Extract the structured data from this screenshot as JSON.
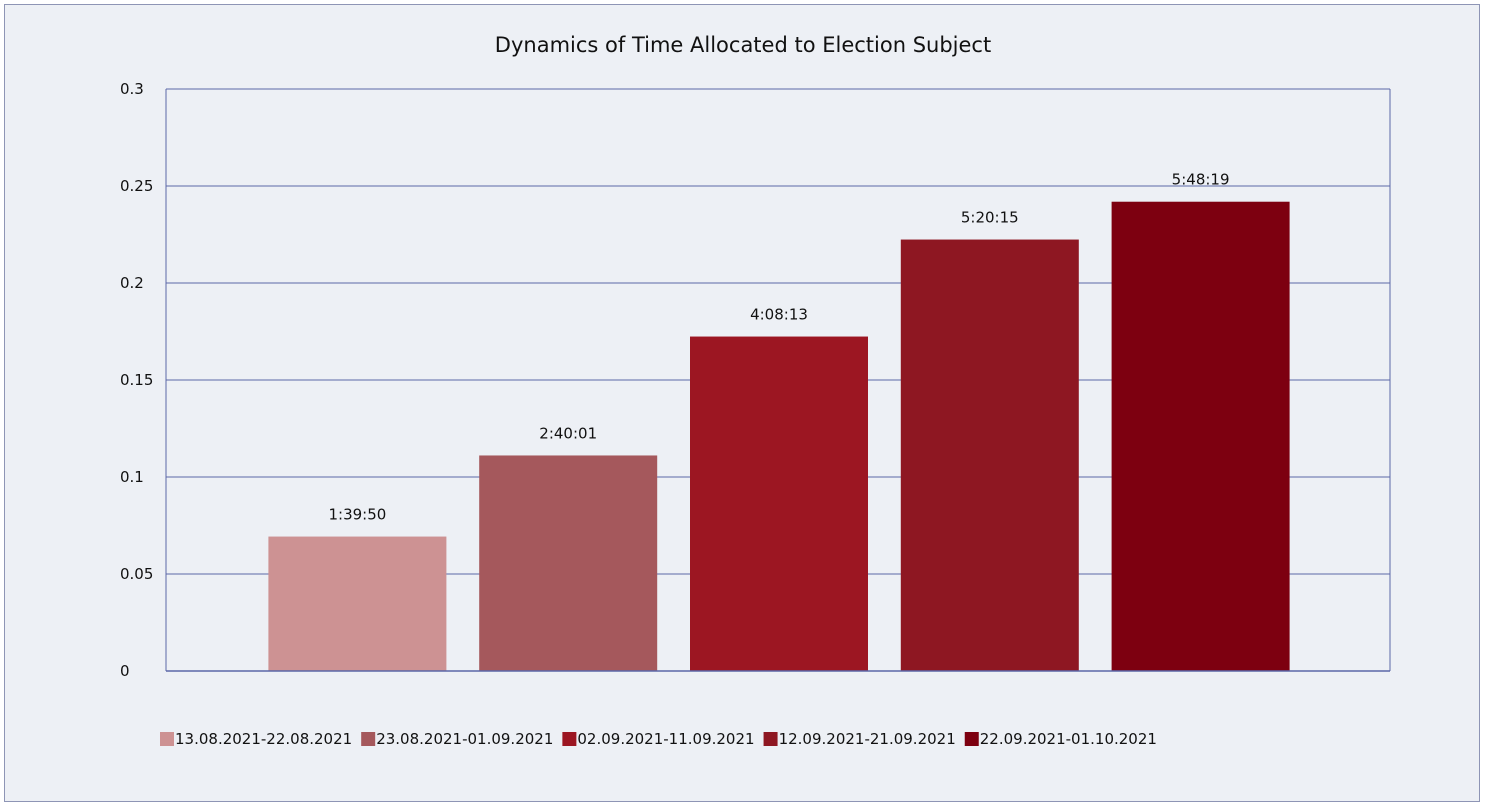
{
  "chart_data": {
    "type": "bar",
    "title": "Dynamics of Time Allocated to Election Subject",
    "xlabel": "",
    "ylabel": "",
    "ylim": [
      0,
      0.3
    ],
    "yticks": [
      "0",
      "0.05",
      "0.1",
      "0.15",
      "0.2",
      "0.25",
      "0.3"
    ],
    "grid": true,
    "legend_position": "bottom",
    "series": [
      {
        "name": "13.08.2021-22.08.2021",
        "value": 0.0693,
        "label": "1:39:50",
        "color": "#cd9293"
      },
      {
        "name": "23.08.2021-01.09.2021",
        "value": 0.1111,
        "label": "2:40:01",
        "color": "#a5585c"
      },
      {
        "name": "02.09.2021-11.09.2021",
        "value": 0.1724,
        "label": "4:08:13",
        "color": "#9c1622"
      },
      {
        "name": "12.09.2021-21.09.2021",
        "value": 0.2224,
        "label": "5:20:15",
        "color": "#8e1722"
      },
      {
        "name": "22.09.2021-01.10.2021",
        "value": 0.2419,
        "label": "5:48:19",
        "color": "#7d0010"
      }
    ]
  },
  "colors": {
    "background": "#edf0f5",
    "grid": "#5b67a8",
    "axis": "#5b67a8"
  }
}
